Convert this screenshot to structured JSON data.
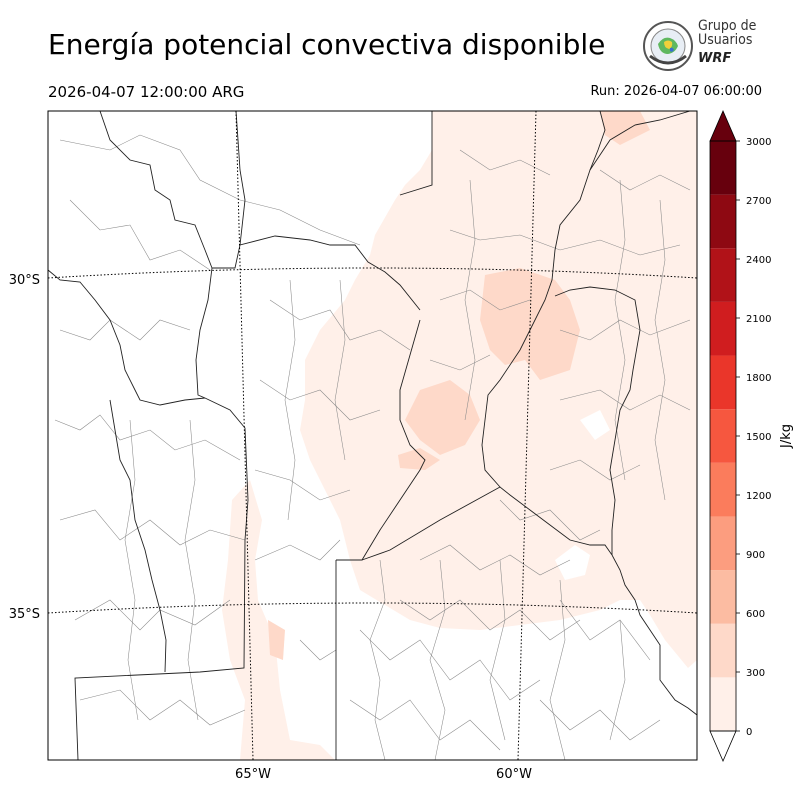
{
  "title": "Energía potencial convectiva disponible",
  "valid_time": "2026-04-07 12:00:00 ARG",
  "run_time": "Run: 2026-04-07 06:00:00",
  "logo": {
    "line1": "Grupo de",
    "line2": "Usuarios",
    "line3": "WRF"
  },
  "map": {
    "lat_labels": [
      "30°S",
      "35°S"
    ],
    "lon_labels": [
      "65°W",
      "60°W"
    ]
  },
  "colorbar": {
    "label": "J/kg",
    "ticks": [
      "0",
      "300",
      "600",
      "900",
      "1200",
      "1500",
      "1800",
      "2100",
      "2400",
      "2700",
      "3000"
    ],
    "colors": [
      "#fff0e9",
      "#fed9c9",
      "#fcbca2",
      "#fc9d7f",
      "#fb7c5c",
      "#f6573f",
      "#ea362a",
      "#d01d1f",
      "#b11218",
      "#8e0912",
      "#67000d"
    ],
    "extend": "both",
    "over_color": "#67000d",
    "under_color": "#ffffff"
  }
}
